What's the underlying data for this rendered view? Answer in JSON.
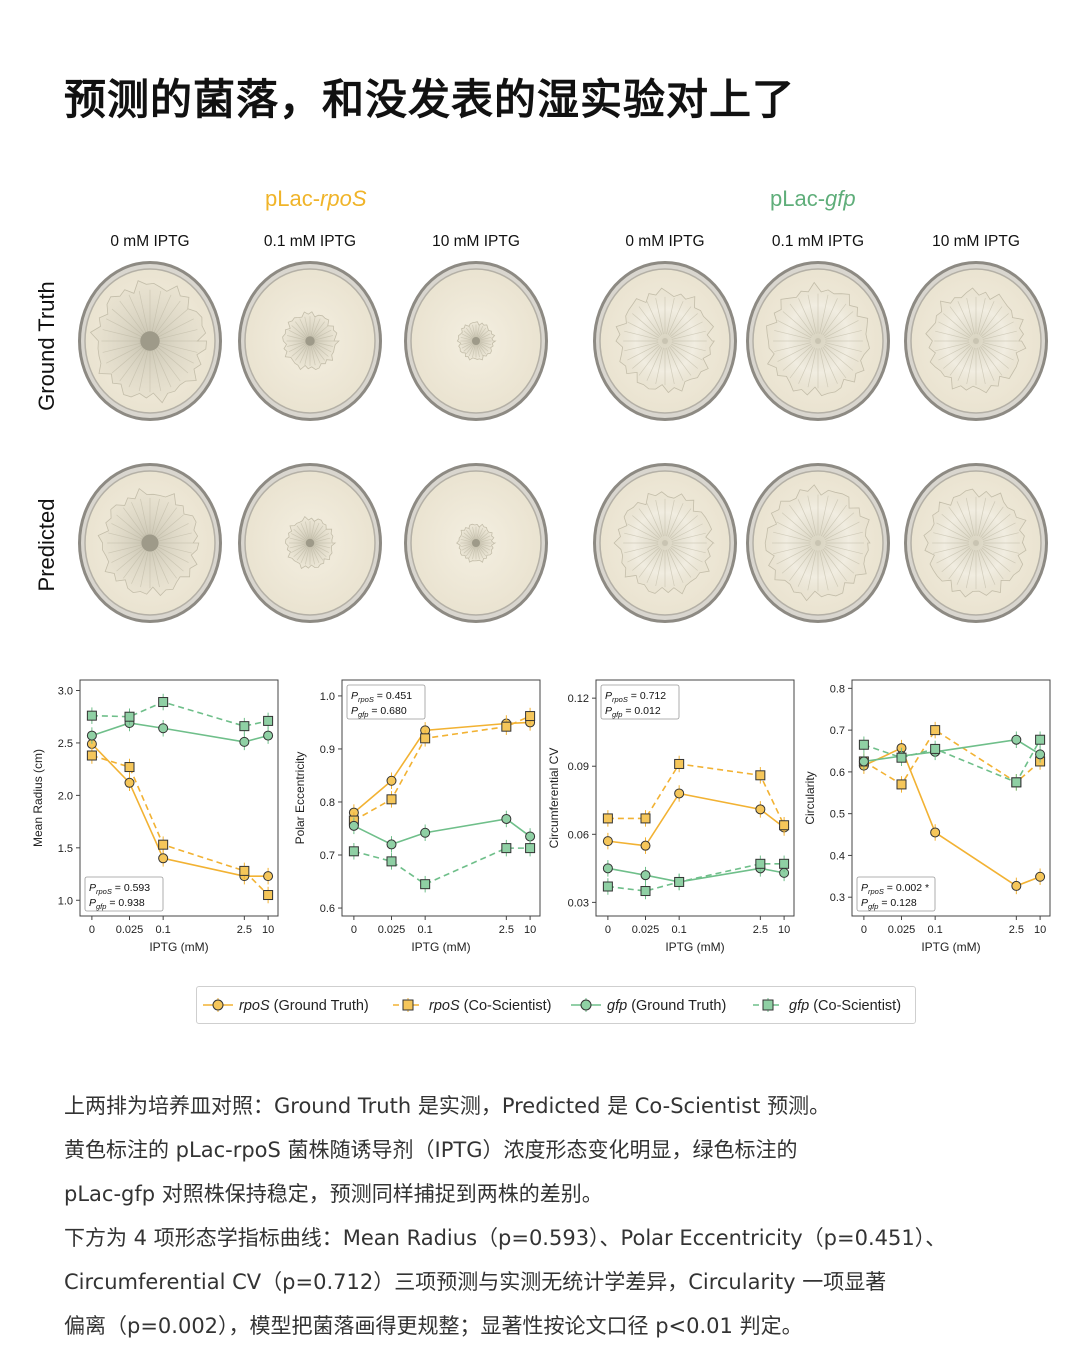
{
  "title": "预测的菌落，和没发表的湿实验对上了",
  "strains": {
    "rpos": {
      "prefix": "pLac-",
      "gene": "rpoS"
    },
    "gfp": {
      "prefix": "pLac-",
      "gene": "gfp"
    }
  },
  "conditions": [
    "0 mM IPTG",
    "0.1 mM IPTG",
    "10 mM IPTG",
    "0 mM IPTG",
    "0.1 mM IPTG",
    "10 mM IPTG"
  ],
  "row_labels": {
    "top": "Ground Truth",
    "bottom": "Predicted"
  },
  "colors": {
    "rpos": "#f2b233",
    "gfp": "#6fbf8a",
    "rpos_fill": "#f5c65a",
    "gfp_fill": "#8fd0a4"
  },
  "chart_data": [
    {
      "type": "line",
      "xlabel": "IPTG (mM)",
      "ylabel": "Mean Radius (cm)",
      "x_ticks": [
        "0",
        "0.025",
        "0.1",
        "2.5",
        "10"
      ],
      "y_ticks": [
        "1.0",
        "1.5",
        "2.0",
        "2.5",
        "3.0"
      ],
      "ylim": [
        0.85,
        3.1
      ],
      "annotation": [
        "P_rpoS = 0.593",
        "P_gfp = 0.938"
      ],
      "annotation_position": "bottom-left",
      "series": [
        {
          "name": "rpoS (Ground Truth)",
          "values": [
            2.49,
            2.12,
            1.4,
            1.23,
            1.23
          ]
        },
        {
          "name": "rpoS (Co-Scientist)",
          "values": [
            2.38,
            2.27,
            1.53,
            1.28,
            1.05
          ]
        },
        {
          "name": "gfp (Ground Truth)",
          "values": [
            2.57,
            2.69,
            2.64,
            2.51,
            2.57
          ]
        },
        {
          "name": "gfp (Co-Scientist)",
          "values": [
            2.76,
            2.75,
            2.89,
            2.66,
            2.71
          ]
        }
      ]
    },
    {
      "type": "line",
      "xlabel": "IPTG (mM)",
      "ylabel": "Polar Eccentricity",
      "x_ticks": [
        "0",
        "0.025",
        "0.1",
        "2.5",
        "10"
      ],
      "y_ticks": [
        "0.6",
        "0.7",
        "0.8",
        "0.9",
        "1.0"
      ],
      "ylim": [
        0.585,
        1.03
      ],
      "annotation": [
        "P_rpoS = 0.451",
        "P_gfp = 0.680"
      ],
      "annotation_position": "top-left",
      "series": [
        {
          "name": "rpoS (Ground Truth)",
          "values": [
            0.78,
            0.84,
            0.935,
            0.948,
            0.95
          ]
        },
        {
          "name": "rpoS (Co-Scientist)",
          "values": [
            0.765,
            0.805,
            0.92,
            0.942,
            0.962
          ]
        },
        {
          "name": "gfp (Ground Truth)",
          "values": [
            0.755,
            0.72,
            0.742,
            0.768,
            0.735
          ]
        },
        {
          "name": "gfp (Co-Scientist)",
          "values": [
            0.707,
            0.688,
            0.645,
            0.713,
            0.713
          ]
        }
      ]
    },
    {
      "type": "line",
      "xlabel": "IPTG (mM)",
      "ylabel": "Circumferential CV",
      "x_ticks": [
        "0",
        "0.025",
        "0.1",
        "2.5",
        "10"
      ],
      "y_ticks": [
        "0.03",
        "0.06",
        "0.09",
        "0.12"
      ],
      "ylim": [
        0.024,
        0.128
      ],
      "annotation": [
        "P_rpoS = 0.712",
        "P_gfp = 0.012"
      ],
      "annotation_position": "top-left",
      "series": [
        {
          "name": "rpoS (Ground Truth)",
          "values": [
            0.057,
            0.055,
            0.078,
            0.071,
            0.063
          ]
        },
        {
          "name": "rpoS (Co-Scientist)",
          "values": [
            0.067,
            0.067,
            0.091,
            0.086,
            0.064
          ]
        },
        {
          "name": "gfp (Ground Truth)",
          "values": [
            0.045,
            0.042,
            0.039,
            0.045,
            0.043
          ]
        },
        {
          "name": "gfp (Co-Scientist)",
          "values": [
            0.037,
            0.035,
            0.039,
            0.047,
            0.047
          ]
        }
      ]
    },
    {
      "type": "line",
      "xlabel": "IPTG (mM)",
      "ylabel": "Circularity",
      "x_ticks": [
        "0",
        "0.025",
        "0.1",
        "2.5",
        "10"
      ],
      "y_ticks": [
        "0.3",
        "0.4",
        "0.5",
        "0.6",
        "0.7",
        "0.8"
      ],
      "ylim": [
        0.255,
        0.82
      ],
      "annotation": [
        "P_rpoS = 0.002 *",
        "P_gfp = 0.128"
      ],
      "annotation_position": "bottom-left",
      "series": [
        {
          "name": "rpoS (Ground Truth)",
          "values": [
            0.615,
            0.657,
            0.455,
            0.327,
            0.349
          ]
        },
        {
          "name": "rpoS (Co-Scientist)",
          "values": [
            0.625,
            0.57,
            0.7,
            0.575,
            0.625
          ]
        },
        {
          "name": "gfp (Ground Truth)",
          "values": [
            0.625,
            0.638,
            0.648,
            0.677,
            0.642
          ]
        },
        {
          "name": "gfp (Co-Scientist)",
          "values": [
            0.665,
            0.634,
            0.655,
            0.575,
            0.677
          ]
        }
      ]
    }
  ],
  "legend": [
    {
      "gene": "rpoS",
      "label": " (Ground Truth)",
      "color": "#f2b233",
      "marker": "circle",
      "dashed": false
    },
    {
      "gene": "rpoS",
      "label": " (Co-Scientist)",
      "color": "#f2b233",
      "marker": "square",
      "dashed": true
    },
    {
      "gene": "gfp",
      "label": " (Ground Truth)",
      "color": "#6fbf8a",
      "marker": "circle",
      "dashed": false
    },
    {
      "gene": "gfp",
      "label": " (Co-Scientist)",
      "color": "#6fbf8a",
      "marker": "square",
      "dashed": true
    }
  ],
  "paragraph": [
    "上两排为培养皿对照：Ground Truth 是实测，Predicted 是 Co-Scientist 预测。",
    "黄色标注的 pLac-rpoS 菌株随诱导剂（IPTG）浓度形态变化明显，绿色标注的",
    "pLac-gfp 对照株保持稳定，预测同样捕捉到两株的差别。",
    "下方为 4 项形态学指标曲线：Mean Radius（p=0.593）、Polar Eccentricity（p=0.451）、",
    "Circumferential CV（p=0.712）三项预测与实测无统计学差异，Circularity 一项显著",
    "偏离（p=0.002），模型把菌落画得更规整；显著性按论文口径 p<0.01 判定。"
  ]
}
